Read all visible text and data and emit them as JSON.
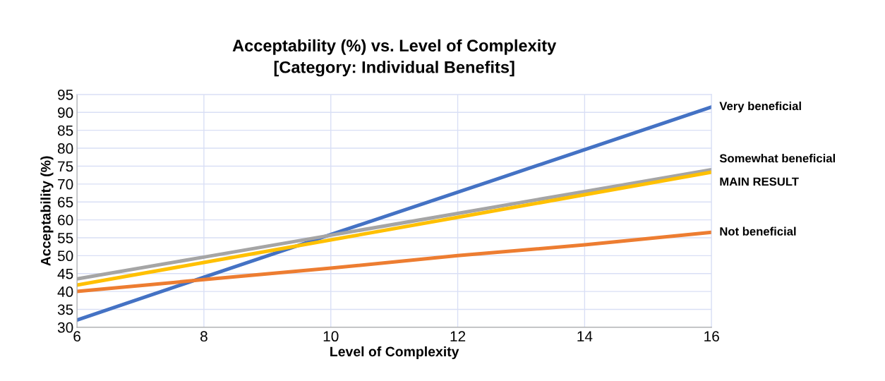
{
  "chart_data": {
    "type": "line",
    "title": "Acceptability (%) vs. Level of Complexity\n[Category: Individual Benefits]",
    "xlabel": "Level of Complexity",
    "ylabel": "Acceptability (%)",
    "x": [
      6,
      8,
      10,
      12,
      14,
      16
    ],
    "series": [
      {
        "name": "Very beneficial",
        "color": "#4472c4",
        "values": [
          32,
          44,
          55.9,
          67.7,
          79.6,
          91.5
        ]
      },
      {
        "name": "Not beneficial",
        "color": "#ed7d31",
        "values": [
          40,
          43.3,
          46.5,
          50,
          53,
          56.5
        ]
      },
      {
        "name": "Somewhat beneficial",
        "color": "#a5a5a5",
        "values": [
          43.5,
          49.6,
          55.7,
          61.8,
          67.9,
          74
        ]
      },
      {
        "name": "MAIN RESULT",
        "color": "#ffc000",
        "values": [
          41.8,
          48.1,
          54.4,
          60.7,
          67,
          73.3
        ]
      }
    ],
    "xlim": [
      6,
      16
    ],
    "xticks": [
      6,
      8,
      10,
      12,
      14,
      16
    ],
    "ylim": [
      30,
      95
    ],
    "yticks": [
      30,
      35,
      40,
      45,
      50,
      55,
      60,
      65,
      70,
      75,
      80,
      85,
      90,
      95
    ],
    "grid": true,
    "legend": false,
    "marker": "none",
    "line_style": "solid"
  }
}
